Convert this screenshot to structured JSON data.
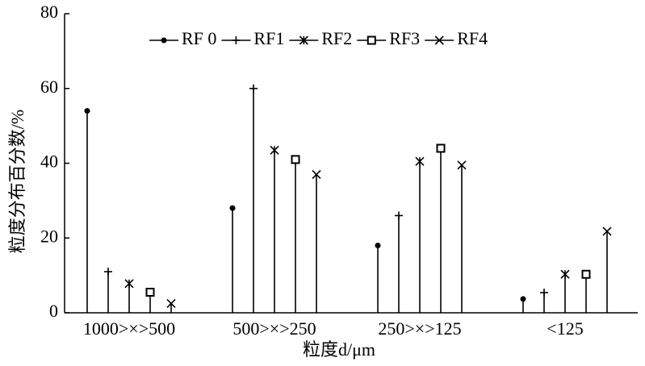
{
  "chart_data": {
    "type": "stem",
    "ylabel": "粒度分布百分数/%",
    "xlabel": "粒度d/μm",
    "categories": [
      "1000>×>500",
      "500>×>250",
      "250>×>125",
      "<125"
    ],
    "series": [
      {
        "name": "RF 0",
        "marker": "circle",
        "color": "#000",
        "values": [
          54,
          28,
          18,
          3.7
        ]
      },
      {
        "name": "RF1",
        "marker": "plus",
        "color": "#000",
        "values": [
          11,
          60,
          26,
          5.4
        ]
      },
      {
        "name": "RF2",
        "marker": "star",
        "color": "#000",
        "values": [
          7.8,
          43.5,
          40.5,
          10.3
        ]
      },
      {
        "name": "RF3",
        "marker": "square",
        "color": "#000",
        "values": [
          5.5,
          41,
          44,
          10.3
        ]
      },
      {
        "name": "RF4",
        "marker": "x",
        "color": "#000",
        "values": [
          2.5,
          37,
          39.5,
          21.8
        ]
      }
    ],
    "ylim": [
      0,
      80
    ],
    "yticks": [
      0,
      20,
      40,
      60,
      80
    ]
  }
}
